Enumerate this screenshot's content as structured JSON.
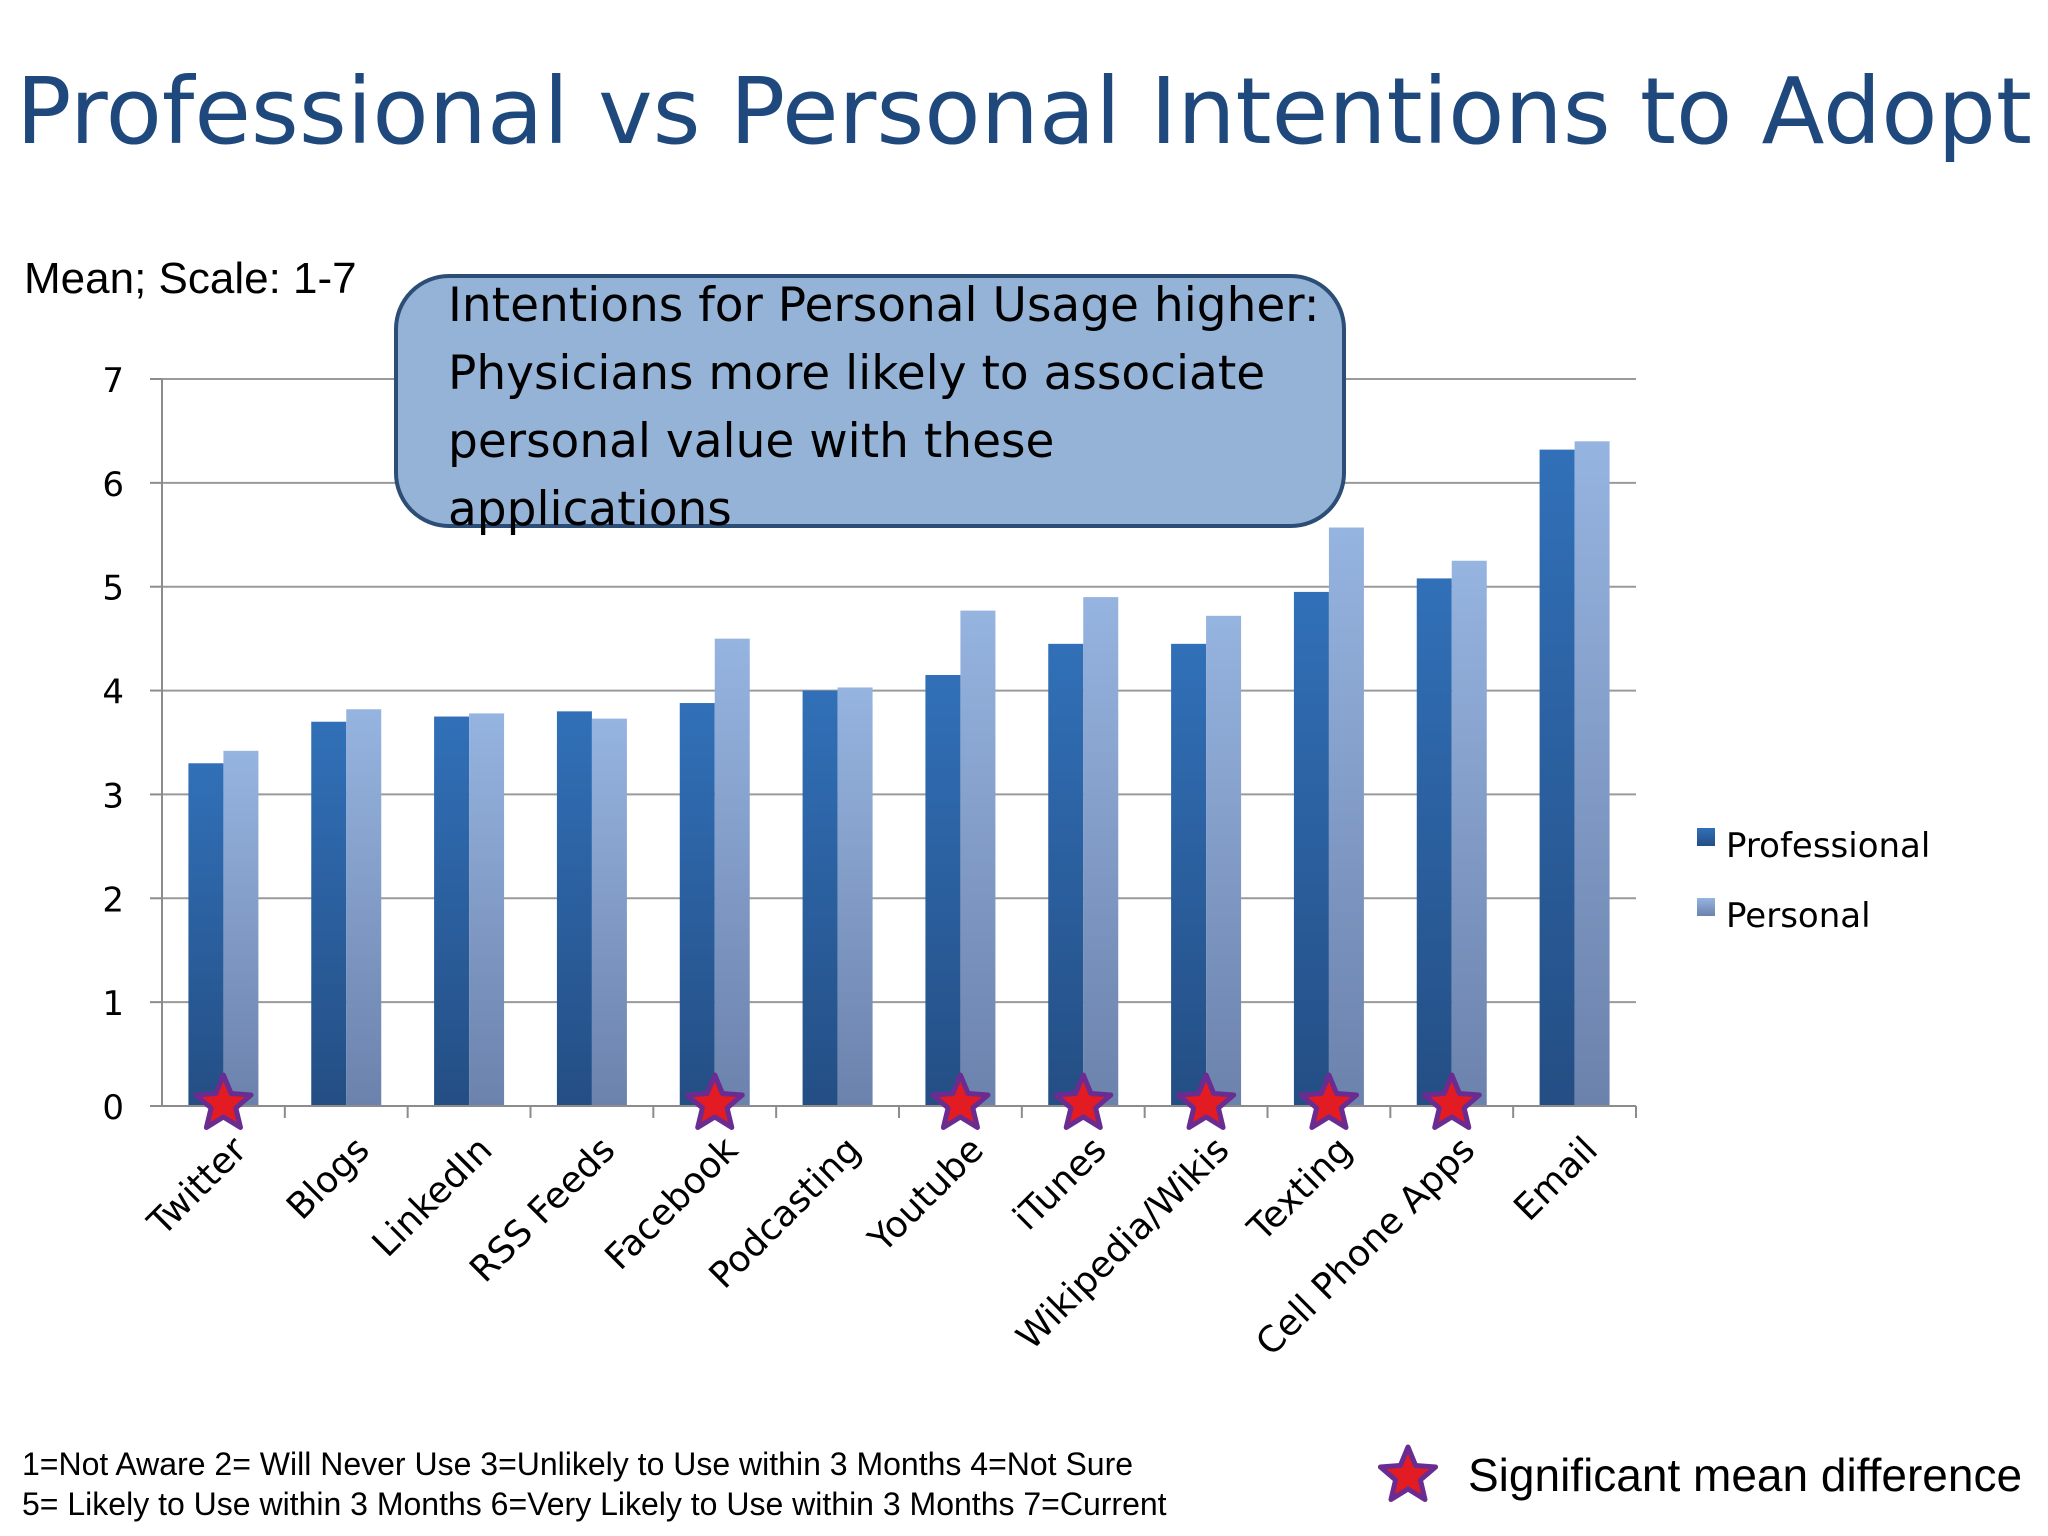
{
  "title": "Professional vs Personal Intentions to Adopt",
  "scale_note": "Mean; Scale: 1-7",
  "callout": "Intentions for Personal Usage higher: Physicians more likely to associate personal value with these applications",
  "footer": {
    "line1": "1=Not Aware  2= Will Never Use  3=Unlikely to Use within 3 Months  4=Not Sure",
    "line2": "5= Likely to Use within 3 Months  6=Very Likely to Use within 3 Months  7=Current"
  },
  "significance_legend": "Significant mean difference",
  "colors": {
    "title": "#1f497d",
    "professional": "#2e64ab",
    "personal": "#8aa8d6",
    "star_fill": "#e31b23",
    "star_stroke": "#6a2c91",
    "callout_fill": "#95b3d7",
    "callout_border": "#2c4d75"
  },
  "chart_data": {
    "type": "bar",
    "categories": [
      "Twitter",
      "Blogs",
      "LinkedIn",
      "RSS Feeds",
      "Facebook",
      "Podcasting",
      "Youtube",
      "iTunes",
      "Wikipedia/Wikis",
      "Texting",
      "Cell Phone Apps",
      "Email"
    ],
    "series": [
      {
        "name": "Professional",
        "values": [
          3.3,
          3.7,
          3.75,
          3.8,
          3.88,
          4.0,
          4.15,
          4.45,
          4.45,
          4.95,
          5.08,
          6.32
        ]
      },
      {
        "name": "Personal",
        "values": [
          3.42,
          3.82,
          3.78,
          3.73,
          4.5,
          4.03,
          4.77,
          4.9,
          4.72,
          5.57,
          5.25,
          6.4
        ]
      }
    ],
    "significant": [
      true,
      false,
      false,
      false,
      true,
      false,
      true,
      true,
      true,
      true,
      true,
      false
    ],
    "yticks": [
      "0",
      "1",
      "2",
      "3",
      "4",
      "5",
      "6",
      "7"
    ],
    "ylim": [
      0,
      7
    ],
    "legend_position": "right",
    "grid": true
  }
}
